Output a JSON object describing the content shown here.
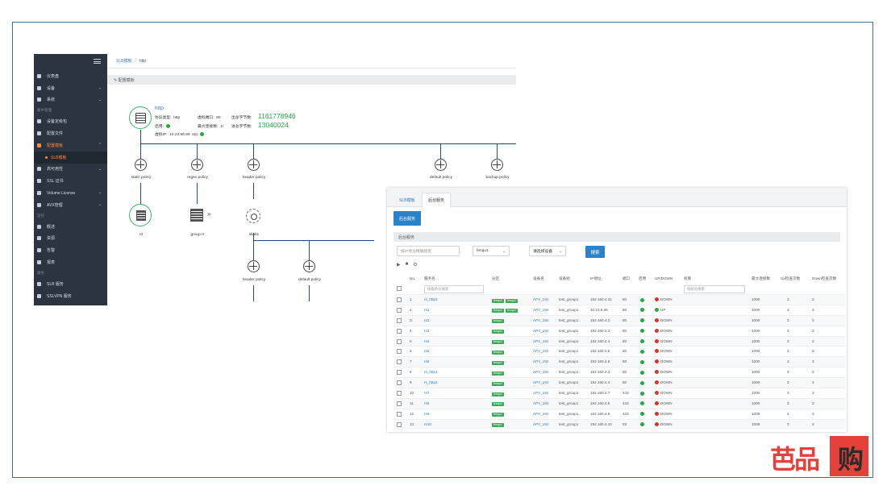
{
  "sidebar": {
    "items": [
      {
        "label": "仪表盘",
        "type": "item",
        "chev": ""
      },
      {
        "label": "设备",
        "type": "item",
        "chev": "⌄"
      },
      {
        "label": "系统",
        "type": "item",
        "chev": "⌄"
      },
      {
        "label": "集中管理",
        "type": "section",
        "chev": ""
      },
      {
        "label": "设备定级包",
        "type": "item",
        "chev": ""
      },
      {
        "label": "配置文件",
        "type": "item",
        "chev": ""
      },
      {
        "label": "配置模板",
        "type": "open",
        "chev": "⌃"
      },
      {
        "label": "SLB模板",
        "type": "active",
        "chev": ""
      },
      {
        "label": "高可用性",
        "type": "item",
        "chev": "⌄"
      },
      {
        "label": "SSL 证书",
        "type": "item",
        "chev": ""
      },
      {
        "label": "Volume License",
        "type": "item",
        "chev": "⌄"
      },
      {
        "label": "AVX管理",
        "type": "item",
        "chev": "⌄"
      },
      {
        "label": "监控",
        "type": "section",
        "chev": ""
      },
      {
        "label": "概述",
        "type": "item",
        "chev": ""
      },
      {
        "label": "资源",
        "type": "item",
        "chev": ""
      },
      {
        "label": "告警",
        "type": "item",
        "chev": ""
      },
      {
        "label": "报表",
        "type": "item",
        "chev": ""
      },
      {
        "label": "服务",
        "type": "section",
        "chev": ""
      },
      {
        "label": "SLB 服务",
        "type": "item",
        "chev": ""
      },
      {
        "label": "SSLVPN 服务",
        "type": "item",
        "chev": ""
      }
    ]
  },
  "breadcrumb": {
    "parent": "SLB模板",
    "sep": "/",
    "current": "http"
  },
  "panel_title": "✎ 配置模板",
  "vip": {
    "name": "http",
    "proto_label": "协议类型:",
    "proto": "http",
    "vport_label": "虚拟端口:",
    "vport": "80",
    "out_label": "出总字节数:",
    "out": "1161778946",
    "enable_label": "启用:",
    "maxconn_label": "最大连接数:",
    "maxconn": "1!",
    "in_label": "进总字节数:",
    "in": "13040024",
    "vip_label": "虚拟IP:",
    "vip": "10.23.66.99",
    "arp": "arp:"
  },
  "topology": {
    "static": "static policy",
    "regex": "regex policy",
    "header": "header policy",
    "default": "default policy",
    "backup": "backup policy",
    "r3": "r3",
    "group": "group-rr",
    "slink": "slink1",
    "arrow": "»",
    "header2": "header policy",
    "default2": "default policy",
    "backup2": "backup policy"
  },
  "table_window": {
    "tab1": "SLB模板",
    "tab2": "后台服务",
    "add_button": "后台服务",
    "list_title": "后台服务",
    "filter_placeholder": "按IP地址精确搜索",
    "partition_select": "fenqu1",
    "device_select": "请选择设备",
    "search_button": "搜索",
    "tool_icons": [
      "▶",
      "■",
      "⚙"
    ],
    "headers": [
      "No.",
      "服务名",
      "分区",
      "设备名",
      "设备组",
      "IP地址",
      "端口",
      "启用",
      "UP/DOWN",
      "权重",
      "最大连接数",
      "Up检查次数",
      "Down检查次数"
    ],
    "name_filter_placeholder": "按服务名搜索",
    "weight_filter_placeholder": "按组名搜索",
    "rows": [
      {
        "no": "1",
        "name": "rs_http2",
        "tags": [
          "fenqu1",
          "fenqu2"
        ],
        "dev": "APV_192",
        "group": "test_group1",
        "ip": "192.160.4.21",
        "port": "80",
        "status": "DOWN",
        "maxconn": "1000",
        "up": "3",
        "down": "3"
      },
      {
        "no": "2",
        "name": "rs1",
        "tags": [
          "fenqu1",
          "fenqu2"
        ],
        "dev": "APV_192",
        "group": "test_group1",
        "ip": "10.23.6.66",
        "port": "80",
        "status": "UP",
        "maxconn": "1000",
        "up": "3",
        "down": "3"
      },
      {
        "no": "3",
        "name": "rs2",
        "tags": [
          "fenqu1"
        ],
        "dev": "APV_192",
        "group": "test_group1",
        "ip": "192.160.4.2",
        "port": "80",
        "status": "DOWN",
        "maxconn": "1000",
        "up": "3",
        "down": "3"
      },
      {
        "no": "4",
        "name": "rs3",
        "tags": [
          "fenqu1"
        ],
        "dev": "APV_192",
        "group": "test_group1",
        "ip": "192.160.4.3",
        "port": "80",
        "status": "DOWN",
        "maxconn": "1000",
        "up": "3",
        "down": "3"
      },
      {
        "no": "5",
        "name": "rs4",
        "tags": [
          "fenqu1"
        ],
        "dev": "APV_192",
        "group": "test_group1",
        "ip": "192.160.4.4",
        "port": "80",
        "status": "DOWN",
        "maxconn": "1000",
        "up": "3",
        "down": "3"
      },
      {
        "no": "6",
        "name": "rs5",
        "tags": [
          "fenqu1"
        ],
        "dev": "APV_192",
        "group": "test_group1",
        "ip": "192.160.4.5",
        "port": "80",
        "status": "DOWN",
        "maxconn": "1000",
        "up": "3",
        "down": "3"
      },
      {
        "no": "7",
        "name": "rs6",
        "tags": [
          "fenqu1"
        ],
        "dev": "APV_192",
        "group": "test_group1",
        "ip": "192.160.4.6",
        "port": "80",
        "status": "DOWN",
        "maxconn": "1000",
        "up": "3",
        "down": "3"
      },
      {
        "no": "8",
        "name": "rs_http1",
        "tags": [
          "fenqu1"
        ],
        "dev": "APV_192",
        "group": "test_group1",
        "ip": "192.160.4.3",
        "port": "80",
        "status": "DOWN",
        "maxconn": "1000",
        "up": "3",
        "down": "3"
      },
      {
        "no": "9",
        "name": "rs_http2",
        "tags": [
          "fenqu1"
        ],
        "dev": "APV_192",
        "group": "test_group1",
        "ip": "192.160.4.4",
        "port": "80",
        "status": "DOWN",
        "maxconn": "1000",
        "up": "3",
        "down": "3"
      },
      {
        "no": "10",
        "name": "rs7",
        "tags": [
          "fenqu1"
        ],
        "dev": "APV_192",
        "group": "test_group1",
        "ip": "192.160.4.7",
        "port": "443",
        "status": "DOWN",
        "maxconn": "1000",
        "up": "3",
        "down": "3"
      },
      {
        "no": "11",
        "name": "rs8",
        "tags": [
          "fenqu1"
        ],
        "dev": "APV_192",
        "group": "test_group1",
        "ip": "192.160.4.8",
        "port": "443",
        "status": "DOWN",
        "maxconn": "1000",
        "up": "3",
        "down": "3"
      },
      {
        "no": "12",
        "name": "rs9",
        "tags": [
          "fenqu1"
        ],
        "dev": "APV_192",
        "group": "test_group1",
        "ip": "192.160.4.9",
        "port": "443",
        "status": "DOWN",
        "maxconn": "1000",
        "up": "3",
        "down": "3"
      },
      {
        "no": "13",
        "name": "rs10",
        "tags": [
          "fenqu1"
        ],
        "dev": "APV_192",
        "group": "test_group1",
        "ip": "192.160.4.10",
        "port": "53",
        "status": "DOWN",
        "maxconn": "1000",
        "up": "3",
        "down": "3"
      }
    ]
  },
  "logo": {
    "left": "芭品",
    "right": "购"
  },
  "colors": {
    "accent": "#2c82c9",
    "sidebar": "#2b3440",
    "active": "#ff8a3d",
    "up": "#27a844",
    "down": "#d9342b",
    "logo": "#e5413a"
  }
}
